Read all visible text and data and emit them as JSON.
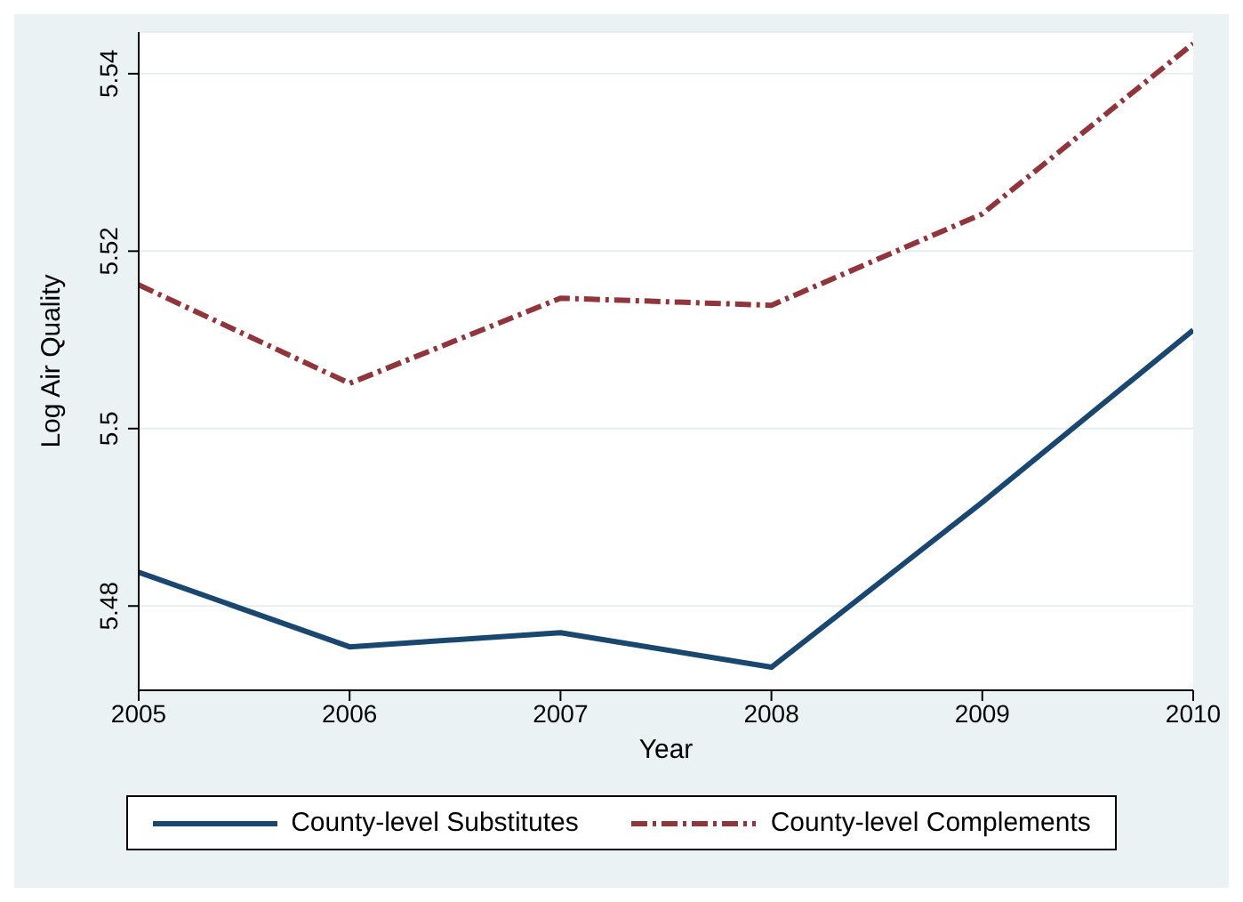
{
  "chart_data": {
    "type": "line",
    "xlabel": "Year",
    "ylabel": "Log Air Quality",
    "x": [
      2005,
      2006,
      2007,
      2008,
      2009,
      2010
    ],
    "xlim": [
      2005,
      2010
    ],
    "xticks": [
      2005,
      2006,
      2007,
      2008,
      2009,
      2010
    ],
    "ylim": [
      5.4705,
      5.5447
    ],
    "yticks": [
      {
        "value": 5.48,
        "label": "5.48"
      },
      {
        "value": 5.5,
        "label": "5.5"
      },
      {
        "value": 5.52,
        "label": "5.52"
      },
      {
        "value": 5.54,
        "label": "5.54"
      }
    ],
    "grid": "y",
    "legend": "bottom",
    "marker": "none",
    "series": [
      {
        "name": "County-level Substitutes",
        "color": "#1a476f",
        "line_style": "solid",
        "values": [
          5.4838,
          5.4754,
          5.477,
          5.4731,
          5.4917,
          5.5111
        ]
      },
      {
        "name": "County-level Complements",
        "color": "#90353b",
        "line_style": "dashdot",
        "values": [
          5.5162,
          5.5051,
          5.5147,
          5.5139,
          5.5242,
          5.5434
        ]
      }
    ]
  }
}
